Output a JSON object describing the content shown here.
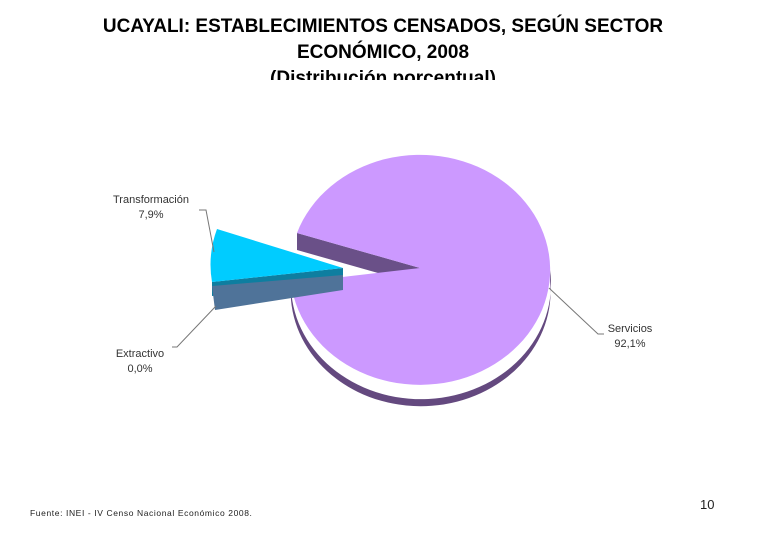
{
  "slide": {
    "title_lines": [
      "UCAYALI: ESTABLECIMIENTOS CENSADOS, SEGÚN SECTOR",
      "ECONÓMICO, 2008",
      "(Distribución porcentual)"
    ],
    "source": "Fuente: INEI - IV Censo Nacional Económico 2008.",
    "page_number": "10"
  },
  "chart_data": {
    "type": "pie",
    "style": "3d-exploded",
    "series": [
      {
        "category": "Transformación",
        "value": 7.9,
        "label": "7,9%",
        "color": "#00ccff"
      },
      {
        "category": "Extractivo",
        "value": 0.0,
        "label": "0,0%",
        "color": "#4f7399"
      },
      {
        "category": "Servicios",
        "value": 92.1,
        "label": "92,1%",
        "color": "#cc99ff"
      }
    ],
    "legend": "none"
  }
}
